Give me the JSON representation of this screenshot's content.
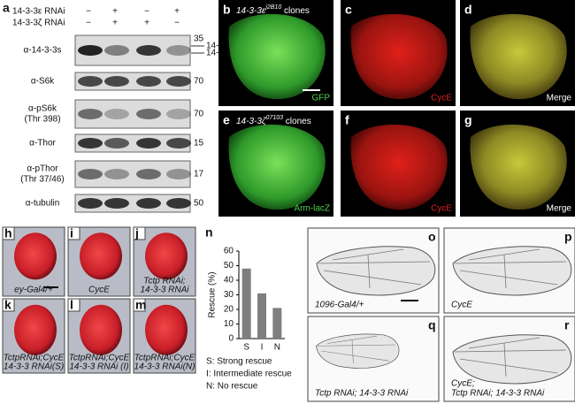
{
  "panel_a": {
    "label": "a",
    "conditions": [
      {
        "name": "14-3-3ε RNAi",
        "signs": [
          "−",
          "+",
          "−",
          "+"
        ]
      },
      {
        "name": "14-3-3ζ RNAi",
        "signs": [
          "−",
          "+",
          "+",
          "−"
        ]
      }
    ],
    "blots": [
      {
        "antibody": [
          "α-14-3-3s"
        ],
        "size": 35,
        "isoforms": [
          "14-3-3ε",
          "14-3-3ζ"
        ]
      },
      {
        "antibody": [
          "α-S6k"
        ],
        "size": 70
      },
      {
        "antibody": [
          "α-pS6k",
          "(Thr 398)"
        ],
        "size": 70
      },
      {
        "antibody": [
          "α-Thor"
        ],
        "size": 15
      },
      {
        "antibody": [
          "α-pThor",
          "(Thr 37/46)"
        ],
        "size": 17
      },
      {
        "antibody": [
          "α-tubulin"
        ],
        "size": 50
      }
    ]
  },
  "fluorescence": [
    {
      "label": "b",
      "title": [
        "14-3-3ε",
        "j2B10",
        " clones"
      ],
      "caption": "GFP"
    },
    {
      "label": "c",
      "caption": "CycE"
    },
    {
      "label": "d",
      "caption": "Merge"
    },
    {
      "label": "e",
      "title": [
        "14-3-3ζ",
        "07103",
        " clones"
      ],
      "caption": "Arm-lacZ"
    },
    {
      "label": "f",
      "caption": "CycE"
    },
    {
      "label": "g",
      "caption": "Merge"
    }
  ],
  "eyes": [
    {
      "label": "h",
      "caption": [
        "ey-Gal4/+"
      ]
    },
    {
      "label": "i",
      "caption": [
        "CycE"
      ]
    },
    {
      "label": "j",
      "caption": [
        "Tctp RNAi;",
        "14-3-3 RNAi"
      ]
    },
    {
      "label": "k",
      "caption": [
        "TctpRNAi;CycE",
        "14-3-3 RNAi(S)"
      ]
    },
    {
      "label": "l",
      "caption": [
        "TctpRNAi;CycE",
        "14-3-3 RNAi (I)"
      ]
    },
    {
      "label": "m",
      "caption": [
        "TctpRNAi;CycE",
        "14-3-3 RNAi(N)"
      ]
    }
  ],
  "panel_n_label": "n",
  "chart_data": {
    "type": "bar",
    "ylabel": "Rescue (%)",
    "categories": [
      "S",
      "I",
      "N"
    ],
    "values": [
      48,
      31,
      21
    ],
    "color": "#7f7f7f",
    "ylim": [
      0,
      60
    ],
    "yticks": [
      0,
      10,
      20,
      30,
      40,
      50,
      60
    ],
    "annotations": [
      "S: Strong rescue",
      "I: Intermediate rescue",
      "N: No rescue"
    ]
  },
  "wings": [
    {
      "label": "o",
      "caption": [
        "1096-Gal4/+"
      ]
    },
    {
      "label": "p",
      "caption": [
        "CycE"
      ]
    },
    {
      "label": "q",
      "caption": [
        "Tctp RNAi;  14-3-3 RNAi"
      ]
    },
    {
      "label": "r",
      "caption": [
        "CycE;",
        "Tctp RNAi;  14-3-3 RNAi"
      ]
    }
  ]
}
